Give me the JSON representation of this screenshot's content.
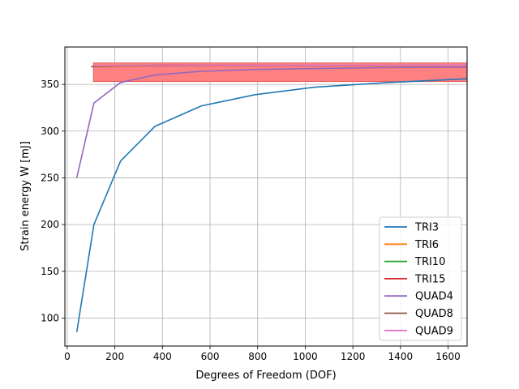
{
  "chart_data": {
    "type": "line",
    "title": "",
    "xlabel": "Degrees of Freedom (DOF)",
    "ylabel": "Strain energy W [mJ]",
    "xlim": [
      -10,
      1680
    ],
    "ylim": [
      70,
      390
    ],
    "xticks": [
      0,
      200,
      400,
      600,
      800,
      1000,
      1200,
      1400,
      1600
    ],
    "yticks": [
      100,
      150,
      200,
      250,
      300,
      350
    ],
    "grid": true,
    "legend_position": "lower right",
    "band": {
      "x": [
        110,
        1680
      ],
      "y": [
        353,
        373
      ],
      "color": "#ff8080"
    },
    "series": [
      {
        "name": "TRI3",
        "color": "#1f77b4",
        "x": [
          40,
          112,
          224,
          368,
          564,
          790,
          1040,
          1350,
          1680
        ],
        "y": [
          85,
          200,
          268,
          305,
          327,
          339,
          347,
          352,
          356
        ]
      },
      {
        "name": "TRI6",
        "color": "#ff7f0e",
        "x": [
          112,
          368,
          790,
          1350,
          1680
        ],
        "y": [
          369,
          370,
          370.3,
          370.5,
          370.6
        ]
      },
      {
        "name": "TRI10",
        "color": "#2ca02c",
        "x": [
          224,
          790,
          1680
        ],
        "y": [
          370.3,
          370.5,
          370.7
        ]
      },
      {
        "name": "TRI15",
        "color": "#d62728",
        "x": [
          368,
          1350,
          1680
        ],
        "y": [
          370.5,
          370.6,
          370.7
        ]
      },
      {
        "name": "QUAD4",
        "color": "#9467bd",
        "x": [
          40,
          112,
          224,
          368,
          564,
          790,
          1040,
          1350,
          1680
        ],
        "y": [
          250,
          330,
          352,
          360,
          364,
          366,
          367,
          368,
          368.5
        ]
      },
      {
        "name": "QUAD8",
        "color": "#8c564b",
        "x": [
          100,
          224,
          564,
          1040,
          1680
        ],
        "y": [
          369,
          369.8,
          370.2,
          370.4,
          370.6
        ]
      },
      {
        "name": "QUAD9",
        "color": "#e377c2",
        "x": [
          112,
          368,
          790,
          1350,
          1680
        ],
        "y": [
          370,
          370.4,
          370.6,
          370.7,
          370.8
        ]
      }
    ]
  }
}
